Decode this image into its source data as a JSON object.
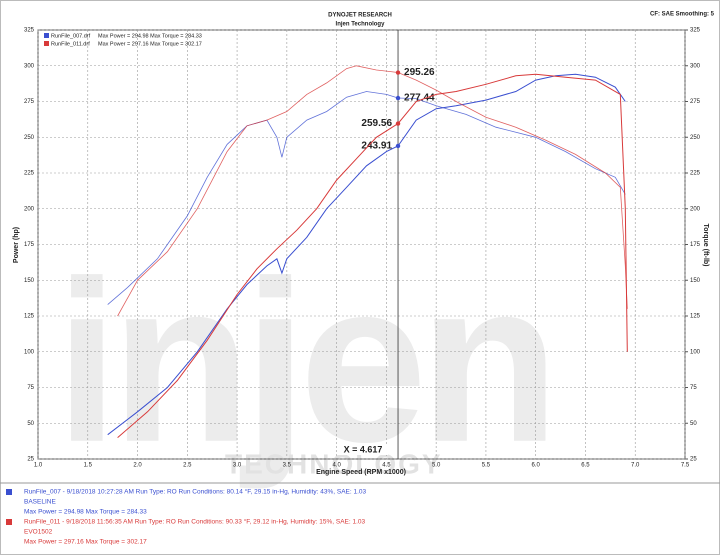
{
  "chart_data": {
    "type": "line",
    "title": "DYNOJET RESEARCH",
    "subtitle": "Injen Technology",
    "settings_note": "CF: SAE  Smoothing: 5",
    "xlabel": "Engine Speed (RPM x1000)",
    "ylabel": "Power (hp)",
    "y2label": "Torque (ft-lb)",
    "watermark": "injen",
    "watermark_sub": "TECHNOLOGY",
    "xlim": [
      1.0,
      7.5
    ],
    "xticks": [
      {
        "value": 1.0,
        "label": "1.0"
      },
      1.5,
      {
        "value": 2.0,
        "label": "2.0"
      },
      2.5,
      {
        "value": 3.0,
        "label": "3.0"
      },
      3.5,
      {
        "value": 4.0,
        "label": "4.0"
      },
      4.5,
      {
        "value": 5.0,
        "label": "5.0"
      },
      5.5,
      {
        "value": 6.0,
        "label": "6.0"
      },
      6.5,
      {
        "value": 7.0,
        "label": "7.0"
      },
      7.5
    ],
    "ylim": [
      25,
      325
    ],
    "yticks": [
      25,
      50,
      75,
      100,
      125,
      150,
      175,
      200,
      225,
      250,
      275,
      300,
      325
    ],
    "y2lim": [
      25,
      325
    ],
    "y2ticks": [
      25,
      50,
      75,
      100,
      125,
      150,
      175,
      200,
      225,
      250,
      275,
      300,
      325
    ],
    "grid": true,
    "cursor": {
      "value": 4.617,
      "label": "X = 4.617"
    },
    "runs": [
      {
        "name": "RunFile_007.drf",
        "color": "#3a4fd0",
        "stats": "Max Power = 294.98  Max Torque = 284.33",
        "info": "RunFile_007 - 9/18/2018 10:27:28 AM  Run Type: RO  Run Conditions: 80.14 °F, 29.15 in-Hg,  Humidity: 43%, SAE: 1.03",
        "label": "BASELINE",
        "power": {
          "x": [
            1.7,
            2.0,
            2.3,
            2.6,
            2.9,
            3.1,
            3.3,
            3.4,
            3.45,
            3.5,
            3.7,
            3.9,
            4.1,
            4.3,
            4.5,
            4.617,
            4.8,
            5.0,
            5.2,
            5.5,
            5.8,
            6.0,
            6.2,
            6.4,
            6.6,
            6.8,
            6.9
          ],
          "values": [
            42,
            58,
            75,
            100,
            130,
            147,
            160,
            165,
            155,
            165,
            180,
            200,
            215,
            230,
            240,
            243.91,
            262,
            270,
            272,
            276,
            282,
            290,
            293,
            294,
            292,
            285,
            275
          ],
          "cursor_value": 243.91
        },
        "torque": {
          "x": [
            1.7,
            1.9,
            2.2,
            2.5,
            2.7,
            2.9,
            3.1,
            3.3,
            3.4,
            3.45,
            3.5,
            3.7,
            3.9,
            4.1,
            4.3,
            4.5,
            4.617,
            4.8,
            5.0,
            5.3,
            5.6,
            6.0,
            6.3,
            6.6,
            6.8,
            6.9
          ],
          "values": [
            133,
            145,
            165,
            195,
            222,
            245,
            258,
            262,
            250,
            236,
            250,
            262,
            268,
            278,
            282,
            280,
            277.44,
            277,
            272,
            266,
            257,
            250,
            240,
            228,
            222,
            210
          ],
          "cursor_value": 277.44
        }
      },
      {
        "name": "RunFile_011.drf",
        "color": "#d83a3a",
        "stats": "Max Power = 297.16  Max Torque = 302.17",
        "info": "RunFile_011 - 9/18/2018 11:56:35 AM  Run Type: RO  Run Conditions: 90.33 °F, 29.12 in-Hg,  Humidity: 15%, SAE: 1.03",
        "label": "EVO1502",
        "power": {
          "x": [
            1.8,
            2.1,
            2.4,
            2.7,
            3.0,
            3.2,
            3.4,
            3.6,
            3.8,
            4.0,
            4.2,
            4.4,
            4.617,
            4.8,
            5.0,
            5.2,
            5.5,
            5.8,
            6.0,
            6.3,
            6.6,
            6.85,
            6.9,
            6.92
          ],
          "values": [
            40,
            58,
            80,
            108,
            140,
            158,
            172,
            185,
            200,
            220,
            235,
            250,
            259.56,
            275,
            280,
            282,
            287,
            293,
            294,
            292,
            290,
            280,
            200,
            100
          ],
          "cursor_value": 259.56
        },
        "torque": {
          "x": [
            1.8,
            2.0,
            2.3,
            2.6,
            2.9,
            3.1,
            3.3,
            3.5,
            3.7,
            3.9,
            4.1,
            4.2,
            4.4,
            4.617,
            4.8,
            5.0,
            5.2,
            5.5,
            5.8,
            6.1,
            6.4,
            6.7,
            6.85,
            6.9,
            6.92
          ],
          "values": [
            125,
            150,
            170,
            200,
            240,
            258,
            262,
            268,
            280,
            288,
            298,
            300,
            297,
            295.26,
            290,
            283,
            275,
            264,
            257,
            248,
            238,
            225,
            215,
            160,
            130
          ],
          "cursor_value": 295.26
        }
      }
    ]
  }
}
